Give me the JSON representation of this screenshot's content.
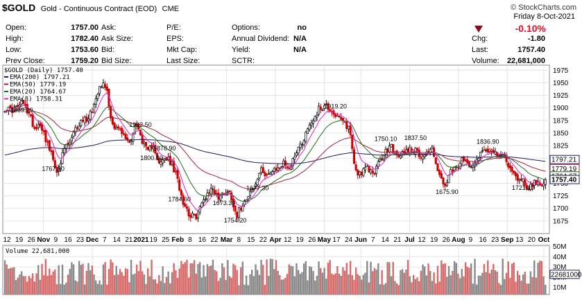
{
  "header": {
    "symbol": "$GOLD",
    "description": "Gold - Continuous Contract (EOD)",
    "exchange": "CME",
    "source": "© StockCharts.com",
    "date": "Friday   8-Oct-2021",
    "change_pct": "-0.10%",
    "quote": [
      {
        "label": "Open:",
        "value": "1757.00"
      },
      {
        "label": "High:",
        "value": "1782.40"
      },
      {
        "label": "Low:",
        "value": "1753.60"
      },
      {
        "label": "Prev Close:",
        "value": "1759.20"
      }
    ],
    "col2": [
      {
        "label": "Ask:",
        "value": ""
      },
      {
        "label": "Ask Size:",
        "value": ""
      },
      {
        "label": "Bid:",
        "value": ""
      },
      {
        "label": "Bid Size:",
        "value": ""
      }
    ],
    "col3": [
      {
        "label": "P/E:",
        "value": ""
      },
      {
        "label": "EPS:",
        "value": ""
      },
      {
        "label": "Mkt Cap:",
        "value": ""
      },
      {
        "label": "Last Size:",
        "value": ""
      }
    ],
    "col4": [
      {
        "label": "Options:",
        "value": "no"
      },
      {
        "label": "Annual Dividend:",
        "value": "N/A"
      },
      {
        "label": "Yield:",
        "value": "N/A"
      },
      {
        "label": "SCTR:",
        "value": ""
      }
    ],
    "right": [
      {
        "label": "Chg:",
        "value": "-1.80"
      },
      {
        "label": "Last:",
        "value": "1757.40"
      },
      {
        "label": "Volume:",
        "value": "22,681,000"
      }
    ]
  },
  "chart_data": {
    "type": "candlestick",
    "title": "$GOLD (Daily) 1757.40",
    "ylim": [
      1650,
      1985
    ],
    "y_ticks": [
      1675,
      1700,
      1725,
      1750,
      1775,
      1800,
      1825,
      1850,
      1875,
      1900,
      1925,
      1950,
      1975
    ],
    "x_labels": [
      "12",
      "19",
      "26",
      "Nov",
      "9",
      "16",
      "23",
      "Dec",
      "7",
      "14",
      "21",
      "2021",
      "19",
      "25",
      "Feb",
      "8",
      "16",
      "22",
      "Mar",
      "8",
      "15",
      "22",
      "Apr",
      "12",
      "19",
      "26",
      "May",
      "17",
      "24",
      "Jun",
      "7",
      "14",
      "21",
      "Jul",
      "12",
      "19",
      "26",
      "Aug",
      "9",
      "16",
      "23",
      "Sep",
      "13",
      "20",
      "Oct"
    ],
    "x_labels_bold": [
      "Nov",
      "Dec",
      "2021",
      "Feb",
      "Mar",
      "Apr",
      "May",
      "Jun",
      "Jul",
      "Aug",
      "Sep",
      "Oct"
    ],
    "anchors": [
      1900,
      1895,
      1900,
      1910,
      1890,
      1860,
      1870,
      1835,
      1800,
      1770,
      1820,
      1830,
      1860,
      1875,
      1880,
      1905,
      1950,
      1945,
      1870,
      1860,
      1845,
      1830,
      1870,
      1840,
      1810,
      1830,
      1785,
      1800,
      1790,
      1760,
      1715,
      1690,
      1680,
      1705,
      1730,
      1740,
      1720,
      1735,
      1730,
      1685,
      1710,
      1730,
      1740,
      1775,
      1770,
      1770,
      1780,
      1790,
      1780,
      1815,
      1830,
      1860,
      1880,
      1900,
      1905,
      1895,
      1880,
      1870,
      1860,
      1775,
      1770,
      1780,
      1770,
      1790,
      1810,
      1825,
      1800,
      1810,
      1820,
      1815,
      1805,
      1810,
      1820,
      1770,
      1740,
      1770,
      1780,
      1795,
      1790,
      1790,
      1810,
      1820,
      1815,
      1800,
      1810,
      1780,
      1760,
      1760,
      1740,
      1750,
      1750,
      1757
    ],
    "candles": 252,
    "seed": 17,
    "annotations": [
      {
        "text": "1962.50",
        "i": 73
      },
      {
        "text": "1878.90",
        "i": 86
      },
      {
        "text": "1859.20",
        "i": 9
      },
      {
        "text": "1767.20",
        "i": 26
      },
      {
        "text": "1800.80",
        "i": 79
      },
      {
        "text": "1784.60",
        "i": 94
      },
      {
        "text": "1673.30",
        "i": 118
      },
      {
        "text": "1677.30",
        "i": 136
      },
      {
        "text": "1754.20",
        "i": 124
      },
      {
        "text": "1919.20",
        "i": 178
      },
      {
        "text": "1750.10",
        "i": 205
      },
      {
        "text": "1837.50",
        "i": 221
      },
      {
        "text": "1675.90",
        "i": 238
      },
      {
        "text": "1836.90",
        "i": 260
      },
      {
        "text": "1721.10",
        "i": 279
      }
    ],
    "series": [
      {
        "name": "EMA(200)",
        "value": "1797.21",
        "color": "#1a1a5a",
        "period": 200
      },
      {
        "name": "EMA(50)",
        "value": "1779.19",
        "color": "#a0203c",
        "period": 50
      },
      {
        "name": "EMA(20)",
        "value": "1764.67",
        "color": "#1e6b1e",
        "period": 20
      },
      {
        "name": "EMA(8)",
        "value": "1758.31",
        "color": "#e020c0",
        "period": 8
      }
    ],
    "last_labels": [
      "1797.21",
      "1779.19",
      "1764.67",
      "1757.40"
    ],
    "volume": {
      "label": "Volume 22,681,000",
      "ticks": [
        "10M",
        "20M",
        "30M",
        "40M",
        "50M"
      ],
      "ticks_v": [
        10,
        20,
        30,
        40,
        50
      ],
      "ylim": [
        3,
        51
      ],
      "last": "22681000"
    },
    "colors": {
      "up": "#000000",
      "down": "#cc0000",
      "vol_up": "#8a8a8a",
      "vol_down": "#d86a6a",
      "grid": "#e4e4e4",
      "last_box": "#1a1a5a"
    }
  }
}
